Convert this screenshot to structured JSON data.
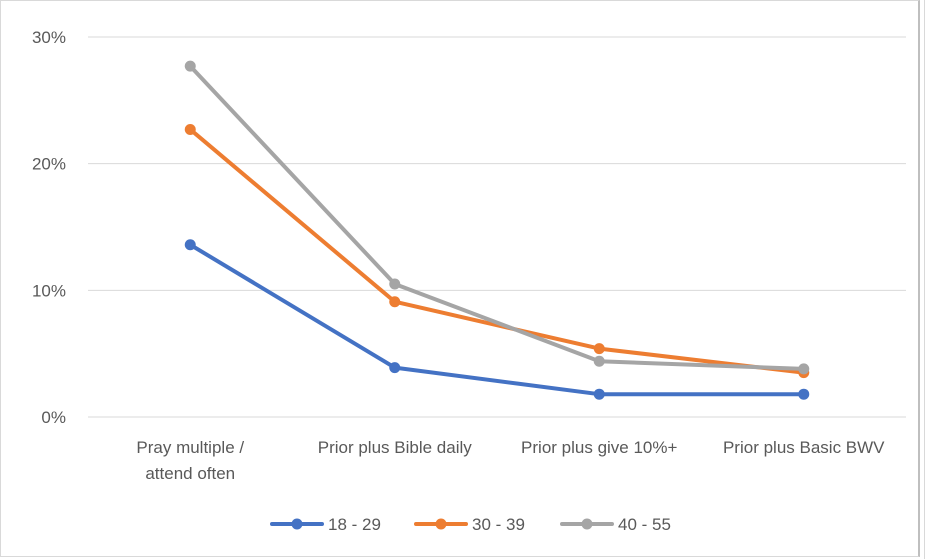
{
  "chart_data": {
    "type": "line",
    "categories": [
      [
        "Pray multiple /",
        "attend often"
      ],
      [
        "Prior plus Bible daily"
      ],
      [
        "Prior plus give 10%+"
      ],
      [
        "Prior plus Basic BWV"
      ]
    ],
    "y_ticks": [
      "0%",
      "10%",
      "20%",
      "30%"
    ],
    "ylim": [
      0,
      30
    ],
    "grid": true,
    "legend_position": "bottom",
    "series": [
      {
        "name": "18 - 29",
        "color": "#4472C4",
        "values": [
          13.6,
          3.9,
          1.8,
          1.8
        ]
      },
      {
        "name": "30 - 39",
        "color": "#ED7D31",
        "values": [
          22.7,
          9.1,
          5.4,
          3.5
        ]
      },
      {
        "name": "40 - 55",
        "color": "#A5A5A5",
        "values": [
          27.7,
          10.5,
          4.4,
          3.8
        ]
      }
    ]
  }
}
